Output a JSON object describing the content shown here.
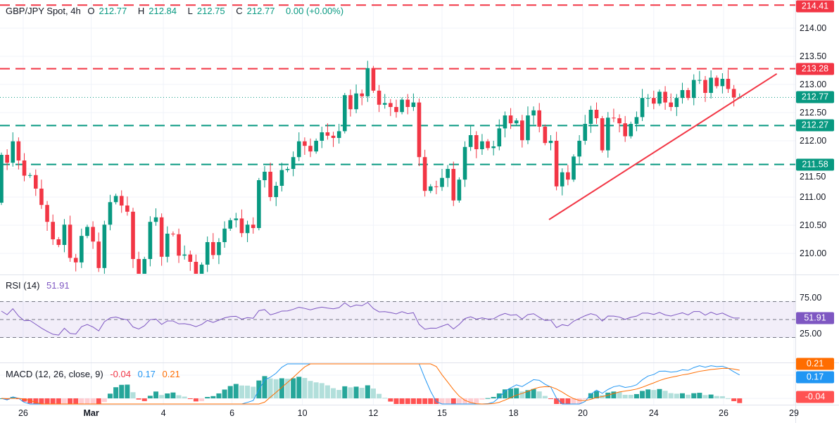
{
  "header": {
    "symbol": "GBP/JPY Spot, 4h",
    "o_label": "O",
    "o": "212.77",
    "h_label": "H",
    "h": "212.84",
    "l_label": "L",
    "l": "212.75",
    "c_label": "C",
    "c": "212.77",
    "change": "0.00 (+0.00%)"
  },
  "rsi_legend": {
    "name": "RSI (14)",
    "value": "51.91"
  },
  "macd_legend": {
    "name": "MACD (12, 26, close, 9)",
    "hist": "-0.04",
    "macd": "0.17",
    "signal": "0.21"
  },
  "colors": {
    "up": "#089981",
    "down": "#f23645",
    "rsi": "#7e57c2",
    "macd": "#2196f3",
    "signal": "#ff6d00"
  },
  "chart_data": {
    "type": "candlestick",
    "title": "GBP/JPY Spot, 4h",
    "y_ticks": [
      "214.00",
      "213.50",
      "213.00",
      "212.50",
      "212.00",
      "211.50",
      "211.00",
      "210.50",
      "210.00"
    ],
    "ylim": [
      209.6,
      214.5
    ],
    "first_open": 210.9,
    "close": [
      211.75,
      211.61,
      211.99,
      211.65,
      211.38,
      211.39,
      211.15,
      210.86,
      210.56,
      210.25,
      210.15,
      210.51,
      209.92,
      209.84,
      210.31,
      210.47,
      210.21,
      209.74,
      210.51,
      210.91,
      211.02,
      210.85,
      210.74,
      209.9,
      209.6,
      209.9,
      210.56,
      210.64,
      209.94,
      210.35,
      210.34,
      209.96,
      209.98,
      209.85,
      209.6,
      209.8,
      210.2,
      209.97,
      210.2,
      210.44,
      210.59,
      210.62,
      210.36,
      210.51,
      210.45,
      211.3,
      211.45,
      211.0,
      211.2,
      211.48,
      211.5,
      211.71,
      211.99,
      211.91,
      211.81,
      212.0,
      212.15,
      212.09,
      212.05,
      212.17,
      212.81,
      212.56,
      212.84,
      212.79,
      213.29,
      212.89,
      212.64,
      212.67,
      212.6,
      212.51,
      212.73,
      212.6,
      212.68,
      211.71,
      211.11,
      211.19,
      211.18,
      211.34,
      211.5,
      210.94,
      211.31,
      211.89,
      212.1,
      211.85,
      211.99,
      211.87,
      211.9,
      212.22,
      212.45,
      212.31,
      212.36,
      212.01,
      212.45,
      212.54,
      212.25,
      211.96,
      212.0,
      211.19,
      211.44,
      211.31,
      211.72,
      212.0,
      212.3,
      212.55,
      212.4,
      211.83,
      212.41,
      212.4,
      212.31,
      212.08,
      212.3,
      212.42,
      212.76,
      212.76,
      212.66,
      212.87,
      212.68,
      212.6,
      212.76,
      212.9,
      212.76,
      213.08,
      213.08,
      212.85,
      213.12,
      212.97,
      213.1,
      212.92,
      212.77,
      212.77
    ],
    "last_bar": {
      "open": 212.77,
      "high": 212.84,
      "low": 212.75,
      "close": 212.77
    },
    "horizontal_levels": [
      {
        "value": 214.41,
        "label": "214.41",
        "color": "#f23645",
        "style": "dashed"
      },
      {
        "value": 213.28,
        "label": "213.28",
        "color": "#f23645",
        "style": "dashed"
      },
      {
        "value": 212.27,
        "label": "212.27",
        "color": "#089981",
        "style": "dashed"
      },
      {
        "value": 211.58,
        "label": "211.58",
        "color": "#089981",
        "style": "dashed"
      }
    ],
    "last_price": {
      "value": 212.77,
      "label": "212.77",
      "color": "#089981",
      "style": "dotted"
    },
    "trendline": {
      "from": {
        "bar": 95.7,
        "price": 210.6
      },
      "to": {
        "bar": 135.5,
        "price": 213.19
      },
      "color": "#f23645"
    },
    "x_ticks": [
      {
        "label": "26",
        "bar": 3.8,
        "bold": false
      },
      {
        "label": "Mar",
        "bar": 15.7,
        "bold": true
      },
      {
        "label": "4",
        "bar": 28.3,
        "bold": false
      },
      {
        "label": "6",
        "bar": 40.3,
        "bold": false
      },
      {
        "label": "10",
        "bar": 52.6,
        "bold": false
      },
      {
        "label": "12",
        "bar": 65,
        "bold": false
      },
      {
        "label": "15",
        "bar": 77,
        "bold": false
      },
      {
        "label": "18",
        "bar": 89.5,
        "bold": false
      },
      {
        "label": "20",
        "bar": 101.6,
        "bold": false
      },
      {
        "label": "24",
        "bar": 114,
        "bold": false
      },
      {
        "label": "26",
        "bar": 126.2,
        "bold": false
      },
      {
        "label": "29",
        "bar": 138.5,
        "bold": false
      }
    ],
    "rsi": {
      "period": 14,
      "upper": 75,
      "middle": 50,
      "lower": 25,
      "y_ticks": [
        "75.00",
        "25.00"
      ],
      "last": "51.91"
    },
    "macd": {
      "fast": 12,
      "slow": 26,
      "signal": 9,
      "hist_last": "-0.04",
      "macd_last": "0.17",
      "signal_last": "0.21"
    },
    "grid": true
  }
}
